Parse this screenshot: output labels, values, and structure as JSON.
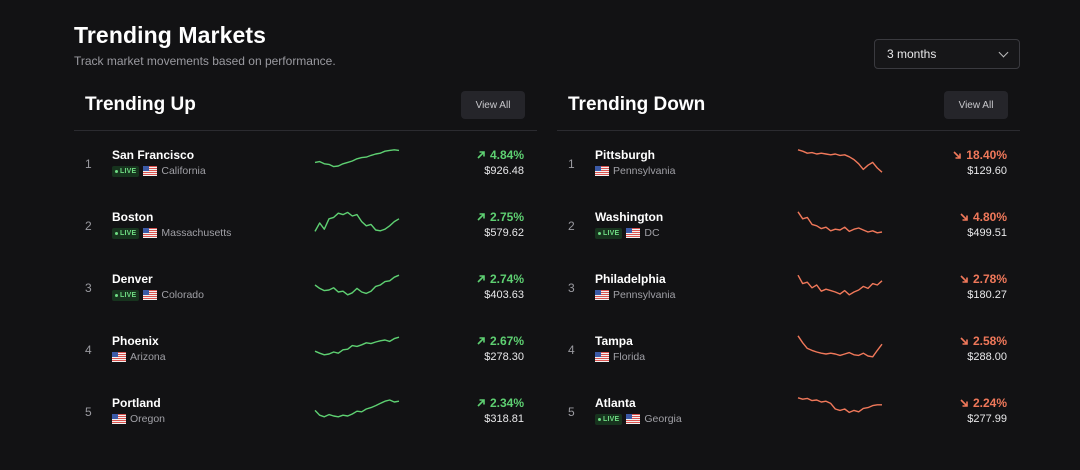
{
  "header": {
    "title": "Trending Markets",
    "subtitle": "Track market movements based on performance.",
    "period": "3 months"
  },
  "colors": {
    "up": "#5ed072",
    "down": "#f0785a",
    "background": "#121214"
  },
  "icons": {
    "flag": "us-flag-icon",
    "up_arrow": "arrow-up-right-icon",
    "down_arrow": "arrow-down-right-icon"
  },
  "panels": [
    {
      "title": "Trending Up",
      "view_all": "View All",
      "direction": "up",
      "items": [
        {
          "rank": "1",
          "city": "San Francisco",
          "live": "LIVE",
          "state": "California",
          "change": "4.84%",
          "price": "$926.48",
          "spark": [
            0.55,
            0.52,
            0.6,
            0.62,
            0.7,
            0.68,
            0.6,
            0.55,
            0.5,
            0.42,
            0.38,
            0.36,
            0.3,
            0.25,
            0.22,
            0.15,
            0.12,
            0.1,
            0.12
          ]
        },
        {
          "rank": "2",
          "city": "Boston",
          "live": "LIVE",
          "state": "Massachusetts",
          "change": "2.75%",
          "price": "$579.62",
          "spark": [
            0.8,
            0.5,
            0.72,
            0.35,
            0.3,
            0.15,
            0.2,
            0.12,
            0.25,
            0.2,
            0.45,
            0.6,
            0.55,
            0.75,
            0.78,
            0.72,
            0.6,
            0.45,
            0.35
          ]
        },
        {
          "rank": "3",
          "city": "Denver",
          "live": "LIVE",
          "state": "Colorado",
          "change": "2.74%",
          "price": "$403.63",
          "spark": [
            0.5,
            0.62,
            0.7,
            0.68,
            0.6,
            0.75,
            0.72,
            0.85,
            0.78,
            0.62,
            0.75,
            0.8,
            0.72,
            0.55,
            0.5,
            0.38,
            0.35,
            0.22,
            0.15
          ]
        },
        {
          "rank": "4",
          "city": "Phoenix",
          "live": "",
          "state": "Arizona",
          "change": "2.67%",
          "price": "$278.30",
          "spark": [
            0.65,
            0.72,
            0.78,
            0.75,
            0.68,
            0.72,
            0.6,
            0.58,
            0.45,
            0.48,
            0.42,
            0.35,
            0.38,
            0.32,
            0.28,
            0.25,
            0.3,
            0.2,
            0.15
          ]
        },
        {
          "rank": "5",
          "city": "Portland",
          "live": "",
          "state": "Oregon",
          "change": "2.34%",
          "price": "$318.81",
          "spark": [
            0.55,
            0.72,
            0.78,
            0.7,
            0.75,
            0.78,
            0.72,
            0.75,
            0.68,
            0.58,
            0.6,
            0.5,
            0.45,
            0.38,
            0.3,
            0.22,
            0.18,
            0.25,
            0.22
          ]
        }
      ]
    },
    {
      "title": "Trending Down",
      "view_all": "View All",
      "direction": "down",
      "items": [
        {
          "rank": "1",
          "city": "Pittsburgh",
          "live": "",
          "state": "Pennsylvania",
          "change": "18.40%",
          "price": "$129.60",
          "spark": [
            0.1,
            0.15,
            0.22,
            0.2,
            0.25,
            0.22,
            0.25,
            0.28,
            0.25,
            0.3,
            0.28,
            0.35,
            0.45,
            0.6,
            0.8,
            0.65,
            0.55,
            0.75,
            0.9
          ]
        },
        {
          "rank": "2",
          "city": "Washington",
          "live": "LIVE",
          "state": "DC",
          "change": "4.80%",
          "price": "$499.51",
          "spark": [
            0.1,
            0.35,
            0.3,
            0.55,
            0.6,
            0.7,
            0.65,
            0.78,
            0.72,
            0.75,
            0.65,
            0.8,
            0.72,
            0.68,
            0.75,
            0.82,
            0.78,
            0.85,
            0.82
          ]
        },
        {
          "rank": "3",
          "city": "Philadelphia",
          "live": "",
          "state": "Pennsylvania",
          "change": "2.78%",
          "price": "$180.27",
          "spark": [
            0.15,
            0.45,
            0.4,
            0.6,
            0.5,
            0.72,
            0.65,
            0.7,
            0.75,
            0.82,
            0.7,
            0.85,
            0.75,
            0.68,
            0.55,
            0.62,
            0.45,
            0.5,
            0.35
          ]
        },
        {
          "rank": "4",
          "city": "Tampa",
          "live": "",
          "state": "Florida",
          "change": "2.58%",
          "price": "$288.00",
          "spark": [
            0.1,
            0.35,
            0.55,
            0.62,
            0.68,
            0.72,
            0.75,
            0.72,
            0.75,
            0.8,
            0.75,
            0.7,
            0.78,
            0.8,
            0.72,
            0.82,
            0.85,
            0.62,
            0.4
          ]
        },
        {
          "rank": "5",
          "city": "Atlanta",
          "live": "LIVE",
          "state": "Georgia",
          "change": "2.24%",
          "price": "$277.99",
          "spark": [
            0.1,
            0.15,
            0.12,
            0.2,
            0.18,
            0.25,
            0.22,
            0.3,
            0.5,
            0.55,
            0.5,
            0.62,
            0.55,
            0.6,
            0.48,
            0.45,
            0.38,
            0.35,
            0.35
          ]
        }
      ]
    }
  ]
}
